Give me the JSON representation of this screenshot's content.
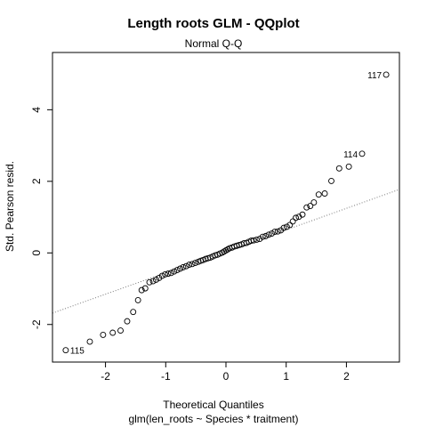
{
  "chart_data": {
    "type": "scatter",
    "title": "Length roots GLM - QQplot",
    "subtitle": "Normal Q-Q",
    "xlabel": "Theoretical Quantiles",
    "ylabel": "Std. Pearson resid.",
    "caption": "glm(len_roots ~ Species * traitment)",
    "xlim": [
      -2.88,
      2.88
    ],
    "ylim": [
      -3.05,
      5.6
    ],
    "xticks": [
      -2,
      -1,
      0,
      1,
      2
    ],
    "yticks": [
      -2,
      0,
      2,
      4
    ],
    "grid": false,
    "reference_line": {
      "intercept": 0.045,
      "slope": 0.6,
      "style": "dotted",
      "color": "#777777"
    },
    "point_labels": [
      {
        "label": "117",
        "index": 0
      },
      {
        "label": "114",
        "index": 1
      },
      {
        "label": "115",
        "index": 2
      }
    ],
    "points": [
      [
        2.66,
        4.98
      ],
      [
        2.26,
        2.77
      ],
      [
        -2.66,
        -2.72
      ],
      [
        2.04,
        2.41
      ],
      [
        1.88,
        2.36
      ],
      [
        1.75,
        2.01
      ],
      [
        1.64,
        1.66
      ],
      [
        1.54,
        1.63
      ],
      [
        1.46,
        1.41
      ],
      [
        1.4,
        1.31
      ],
      [
        1.34,
        1.27
      ],
      [
        1.27,
        1.07
      ],
      [
        1.21,
        1.01
      ],
      [
        1.16,
        0.98
      ],
      [
        1.11,
        0.88
      ],
      [
        1.06,
        0.78
      ],
      [
        1.01,
        0.73
      ],
      [
        0.96,
        0.7
      ],
      [
        0.91,
        0.63
      ],
      [
        0.86,
        0.6
      ],
      [
        0.81,
        0.59
      ],
      [
        0.76,
        0.54
      ],
      [
        0.71,
        0.51
      ],
      [
        0.66,
        0.47
      ],
      [
        0.61,
        0.45
      ],
      [
        0.56,
        0.39
      ],
      [
        0.51,
        0.37
      ],
      [
        0.46,
        0.35
      ],
      [
        0.42,
        0.34
      ],
      [
        0.38,
        0.31
      ],
      [
        0.34,
        0.28
      ],
      [
        0.3,
        0.27
      ],
      [
        0.26,
        0.24
      ],
      [
        0.22,
        0.22
      ],
      [
        0.18,
        0.2
      ],
      [
        0.14,
        0.18
      ],
      [
        0.1,
        0.15
      ],
      [
        0.06,
        0.13
      ],
      [
        0.03,
        0.1
      ],
      [
        0.0,
        0.07
      ],
      [
        -0.03,
        0.04
      ],
      [
        -0.06,
        0.01
      ],
      [
        -0.1,
        -0.02
      ],
      [
        -0.14,
        -0.05
      ],
      [
        -0.18,
        -0.07
      ],
      [
        -0.22,
        -0.1
      ],
      [
        -0.26,
        -0.13
      ],
      [
        -0.3,
        -0.15
      ],
      [
        -0.34,
        -0.17
      ],
      [
        -0.38,
        -0.2
      ],
      [
        -0.42,
        -0.22
      ],
      [
        -0.46,
        -0.25
      ],
      [
        -0.51,
        -0.28
      ],
      [
        -0.56,
        -0.31
      ],
      [
        -0.61,
        -0.33
      ],
      [
        -0.66,
        -0.37
      ],
      [
        -0.71,
        -0.4
      ],
      [
        -0.76,
        -0.44
      ],
      [
        -0.81,
        -0.48
      ],
      [
        -0.86,
        -0.52
      ],
      [
        -0.91,
        -0.56
      ],
      [
        -0.96,
        -0.58
      ],
      [
        -1.01,
        -0.6
      ],
      [
        -1.06,
        -0.64
      ],
      [
        -1.11,
        -0.7
      ],
      [
        -1.16,
        -0.75
      ],
      [
        -1.21,
        -0.79
      ],
      [
        -1.27,
        -0.82
      ],
      [
        -1.34,
        -0.99
      ],
      [
        -1.4,
        -1.04
      ],
      [
        -1.46,
        -1.32
      ],
      [
        -1.54,
        -1.65
      ],
      [
        -1.64,
        -1.91
      ],
      [
        -1.75,
        -2.17
      ],
      [
        -1.88,
        -2.23
      ],
      [
        -2.04,
        -2.29
      ],
      [
        -2.26,
        -2.48
      ]
    ]
  }
}
